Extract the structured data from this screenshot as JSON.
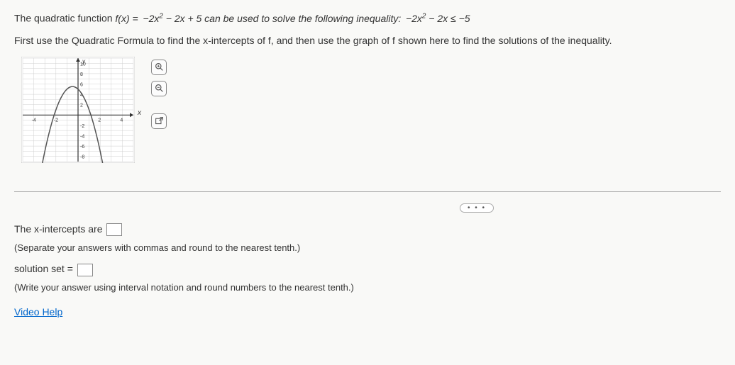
{
  "question": {
    "line1_prefix": "The quadratic function ",
    "line1_func": "f(x) =  −2x",
    "line1_exp": "2",
    "line1_mid": " − 2x + 5 can be used to solve the following inequality:  ",
    "line1_ineq": "−2x",
    "line1_exp2": "2",
    "line1_end": " − 2x ≤ −5",
    "line2": "First use the Quadratic Formula to find the x-intercepts of f, and then use the graph of f shown here to find the solutions of the inequality."
  },
  "graph": {
    "xmin": -5,
    "xmax": 5,
    "ymin": -9,
    "ymax": 11,
    "xticks": [
      -4,
      -2,
      2,
      4
    ],
    "yticks_pos": [
      2,
      4,
      6,
      8,
      10
    ],
    "yticks_neg": [
      -2,
      -4,
      -6,
      -8
    ],
    "xlabel": "x",
    "ylabel": "y",
    "width": 160,
    "height": 150,
    "grid_color": "#d0d0d0",
    "axis_color": "#333333",
    "curve_color": "#555555",
    "bg": "#ffffff",
    "func_a": -2,
    "func_b": -2,
    "func_c": 5
  },
  "tools": {
    "zoom_in": "zoom-in",
    "zoom_out": "zoom-out",
    "popout": "popout"
  },
  "ellipsis": "• • •",
  "answers": {
    "intercepts_label": "The x-intercepts are ",
    "intercepts_hint": "(Separate your answers with commas and round to the nearest tenth.)",
    "solution_label": "solution set = ",
    "solution_hint": "(Write your answer using interval notation and round numbers to the nearest tenth.)",
    "video_help": "Video Help"
  }
}
